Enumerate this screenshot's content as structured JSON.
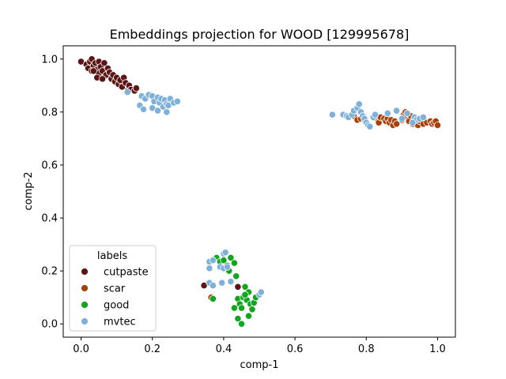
{
  "chart_data": {
    "type": "scatter",
    "title": "Embeddings projection for WOOD [129995678]",
    "xlabel": "comp-1",
    "ylabel": "comp-2",
    "xlim": [
      -0.05,
      1.05
    ],
    "ylim": [
      -0.05,
      1.05
    ],
    "xticks": [
      0.0,
      0.2,
      0.4,
      0.6,
      0.8,
      1.0
    ],
    "yticks": [
      0.0,
      0.2,
      0.4,
      0.6,
      0.8,
      1.0
    ],
    "xtick_labels": [
      "0.0",
      "0.2",
      "0.4",
      "0.6",
      "0.8",
      "1.0"
    ],
    "ytick_labels": [
      "0.0",
      "0.2",
      "0.4",
      "0.6",
      "0.8",
      "1.0"
    ],
    "grid": false,
    "legend": {
      "title": "labels",
      "placement": "lower-left"
    },
    "series": [
      {
        "name": "cutpaste",
        "color": "#5c1414",
        "points": [
          [
            0.0,
            0.99
          ],
          [
            0.015,
            0.98
          ],
          [
            0.02,
            0.965
          ],
          [
            0.025,
            0.99
          ],
          [
            0.03,
            1.0
          ],
          [
            0.035,
            0.975
          ],
          [
            0.03,
            0.955
          ],
          [
            0.04,
            0.985
          ],
          [
            0.045,
            0.96
          ],
          [
            0.05,
            0.99
          ],
          [
            0.05,
            0.945
          ],
          [
            0.055,
            0.97
          ],
          [
            0.06,
            0.955
          ],
          [
            0.065,
            0.985
          ],
          [
            0.07,
            0.94
          ],
          [
            0.075,
            0.965
          ],
          [
            0.08,
            0.95
          ],
          [
            0.085,
            0.925
          ],
          [
            0.09,
            0.94
          ],
          [
            0.095,
            0.915
          ],
          [
            0.1,
            0.93
          ],
          [
            0.105,
            0.905
          ],
          [
            0.11,
            0.92
          ],
          [
            0.115,
            0.895
          ],
          [
            0.12,
            0.93
          ],
          [
            0.125,
            0.91
          ],
          [
            0.13,
            0.88
          ],
          [
            0.135,
            0.9
          ],
          [
            0.14,
            0.885
          ],
          [
            0.15,
            0.88
          ],
          [
            0.155,
            0.89
          ],
          [
            0.045,
            0.93
          ],
          [
            0.06,
            0.925
          ],
          [
            0.035,
            0.955
          ],
          [
            0.345,
            0.145
          ],
          [
            0.44,
            0.14
          ]
        ]
      },
      {
        "name": "scar",
        "color": "#a84008",
        "points": [
          [
            0.765,
            0.785
          ],
          [
            0.775,
            0.77
          ],
          [
            0.785,
            0.775
          ],
          [
            0.795,
            0.77
          ],
          [
            0.83,
            0.775
          ],
          [
            0.835,
            0.76
          ],
          [
            0.84,
            0.78
          ],
          [
            0.85,
            0.775
          ],
          [
            0.855,
            0.765
          ],
          [
            0.86,
            0.775
          ],
          [
            0.865,
            0.76
          ],
          [
            0.87,
            0.77
          ],
          [
            0.875,
            0.75
          ],
          [
            0.88,
            0.765
          ],
          [
            0.885,
            0.755
          ],
          [
            0.9,
            0.77
          ],
          [
            0.905,
            0.79
          ],
          [
            0.91,
            0.8
          ],
          [
            0.915,
            0.775
          ],
          [
            0.92,
            0.765
          ],
          [
            0.925,
            0.785
          ],
          [
            0.93,
            0.755
          ],
          [
            0.935,
            0.775
          ],
          [
            0.94,
            0.765
          ],
          [
            0.945,
            0.75
          ],
          [
            0.95,
            0.765
          ],
          [
            0.955,
            0.775
          ],
          [
            0.96,
            0.755
          ],
          [
            0.97,
            0.76
          ],
          [
            0.98,
            0.765
          ],
          [
            0.985,
            0.755
          ],
          [
            0.99,
            0.76
          ],
          [
            0.995,
            0.765
          ],
          [
            1.0,
            0.75
          ],
          [
            0.905,
            0.78
          ],
          [
            0.365,
            0.1
          ]
        ]
      },
      {
        "name": "good",
        "color": "#12a51e",
        "points": [
          [
            0.38,
            0.25
          ],
          [
            0.39,
            0.235
          ],
          [
            0.4,
            0.24
          ],
          [
            0.41,
            0.22
          ],
          [
            0.415,
            0.2
          ],
          [
            0.42,
            0.25
          ],
          [
            0.43,
            0.23
          ],
          [
            0.435,
            0.18
          ],
          [
            0.44,
            0.095
          ],
          [
            0.445,
            0.075
          ],
          [
            0.45,
            0.06
          ],
          [
            0.455,
            0.1
          ],
          [
            0.46,
            0.14
          ],
          [
            0.465,
            0.09
          ],
          [
            0.47,
            0.12
          ],
          [
            0.475,
            0.075
          ],
          [
            0.48,
            0.055
          ],
          [
            0.485,
            0.08
          ],
          [
            0.47,
            0.03
          ],
          [
            0.45,
            0.0
          ],
          [
            0.44,
            0.02
          ],
          [
            0.43,
            0.06
          ],
          [
            0.49,
            0.1
          ],
          [
            0.46,
            0.11
          ],
          [
            0.37,
            0.095
          ]
        ]
      },
      {
        "name": "mvtec",
        "color": "#7eb1d9",
        "points": [
          [
            0.13,
            0.875
          ],
          [
            0.17,
            0.86
          ],
          [
            0.18,
            0.85
          ],
          [
            0.19,
            0.865
          ],
          [
            0.2,
            0.86
          ],
          [
            0.205,
            0.84
          ],
          [
            0.215,
            0.855
          ],
          [
            0.22,
            0.835
          ],
          [
            0.225,
            0.85
          ],
          [
            0.23,
            0.82
          ],
          [
            0.235,
            0.845
          ],
          [
            0.24,
            0.83
          ],
          [
            0.245,
            0.825
          ],
          [
            0.25,
            0.85
          ],
          [
            0.26,
            0.835
          ],
          [
            0.27,
            0.84
          ],
          [
            0.165,
            0.825
          ],
          [
            0.175,
            0.81
          ],
          [
            0.2,
            0.815
          ],
          [
            0.215,
            0.805
          ],
          [
            0.24,
            0.8
          ],
          [
            0.705,
            0.79
          ],
          [
            0.735,
            0.79
          ],
          [
            0.745,
            0.785
          ],
          [
            0.75,
            0.78
          ],
          [
            0.76,
            0.79
          ],
          [
            0.765,
            0.805
          ],
          [
            0.775,
            0.815
          ],
          [
            0.78,
            0.83
          ],
          [
            0.785,
            0.8
          ],
          [
            0.79,
            0.785
          ],
          [
            0.795,
            0.775
          ],
          [
            0.8,
            0.76
          ],
          [
            0.805,
            0.75
          ],
          [
            0.81,
            0.745
          ],
          [
            0.82,
            0.78
          ],
          [
            0.825,
            0.79
          ],
          [
            0.86,
            0.795
          ],
          [
            0.885,
            0.805
          ],
          [
            0.9,
            0.775
          ],
          [
            0.915,
            0.795
          ],
          [
            0.935,
            0.78
          ],
          [
            0.94,
            0.77
          ],
          [
            0.95,
            0.775
          ],
          [
            0.96,
            0.78
          ],
          [
            0.93,
            0.76
          ],
          [
            0.4,
            0.265
          ],
          [
            0.405,
            0.27
          ],
          [
            0.36,
            0.235
          ],
          [
            0.37,
            0.24
          ],
          [
            0.36,
            0.21
          ],
          [
            0.39,
            0.215
          ],
          [
            0.4,
            0.21
          ],
          [
            0.41,
            0.215
          ],
          [
            0.42,
            0.16
          ],
          [
            0.395,
            0.155
          ],
          [
            0.36,
            0.155
          ],
          [
            0.37,
            0.145
          ],
          [
            0.5,
            0.11
          ],
          [
            0.505,
            0.12
          ]
        ]
      }
    ]
  }
}
